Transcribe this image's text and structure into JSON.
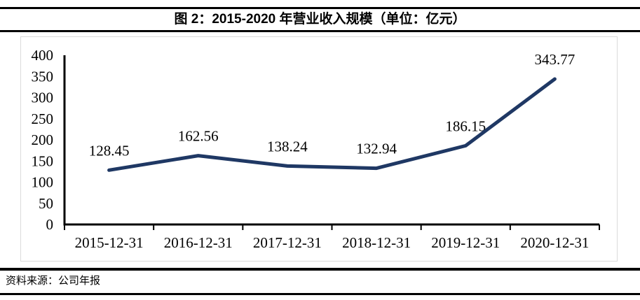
{
  "header": {
    "title": "图 2：2015-2020 年营业收入规模（单位：亿元）"
  },
  "chart_data": {
    "type": "line",
    "title": "图 2：2015-2020 年营业收入规模（单位：亿元）",
    "categories": [
      "2015-12-31",
      "2016-12-31",
      "2017-12-31",
      "2018-12-31",
      "2019-12-31",
      "2020-12-31"
    ],
    "values": [
      128.45,
      162.56,
      138.24,
      132.94,
      186.15,
      343.77
    ],
    "data_labels": [
      "128.45",
      "162.56",
      "138.24",
      "132.94",
      "186.15",
      "343.77"
    ],
    "ylim": [
      0,
      400
    ],
    "yticks": [
      0,
      50,
      100,
      150,
      200,
      250,
      300,
      350,
      400
    ],
    "xlabel": "",
    "ylabel": "",
    "grid": false,
    "legend": false,
    "line_color": "#1F3864",
    "axis_color": "#000000",
    "panel_border_color": "#DBDBDB"
  },
  "footer": {
    "source": "资料来源：公司年报"
  }
}
